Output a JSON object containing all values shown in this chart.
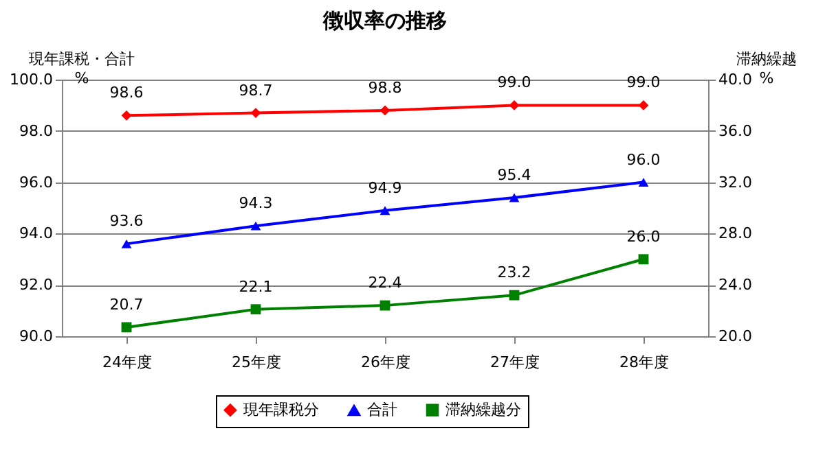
{
  "chart_data": {
    "type": "line",
    "title": "徴収率の推移",
    "ylabel": "現年課税・合計\n%",
    "y2label": "滞納繰越\n%",
    "categories": [
      "24年度",
      "25年度",
      "26年度",
      "27年度",
      "28年度"
    ],
    "series": [
      {
        "name": "現年課税分",
        "color": "#ff0000",
        "marker": "diamond",
        "values": [
          98.6,
          98.7,
          98.8,
          99.0,
          99.0
        ],
        "value_labels": [
          "98.6",
          "98.7",
          "98.8",
          "99.0",
          "99.0"
        ]
      },
      {
        "name": "合計",
        "color": "#0000ff",
        "marker": "triangle",
        "values": [
          93.6,
          94.3,
          94.9,
          95.4,
          96.0
        ],
        "value_labels": [
          "93.6",
          "94.3",
          "94.9",
          "95.4",
          "96.0"
        ]
      },
      {
        "name": "滞納繰越分",
        "color": "#008000",
        "marker": "square",
        "axis": "y2",
        "values": [
          20.7,
          22.1,
          22.4,
          23.2,
          26.0
        ],
        "value_labels": [
          "20.7",
          "22.1",
          "22.4",
          "23.2",
          "26.0"
        ]
      }
    ],
    "ylim": [
      90,
      100
    ],
    "yticks": [
      {
        "value": 90,
        "label": "90.0"
      },
      {
        "value": 92,
        "label": "92.0"
      },
      {
        "value": 94,
        "label": "94.0"
      },
      {
        "value": 96,
        "label": "96.0"
      },
      {
        "value": 98,
        "label": "98.0"
      },
      {
        "value": 100,
        "label": "100.0"
      }
    ],
    "y2lim": [
      20,
      40
    ],
    "y2ticks": [
      {
        "value": 20,
        "label": "20.0"
      },
      {
        "value": 24,
        "label": "24.0"
      },
      {
        "value": 28,
        "label": "28.0"
      },
      {
        "value": 32,
        "label": "32.0"
      },
      {
        "value": 36,
        "label": "36.0"
      },
      {
        "value": 40,
        "label": "40.0"
      }
    ],
    "grid": "y",
    "legend": "bottom",
    "line_style": "solid"
  }
}
